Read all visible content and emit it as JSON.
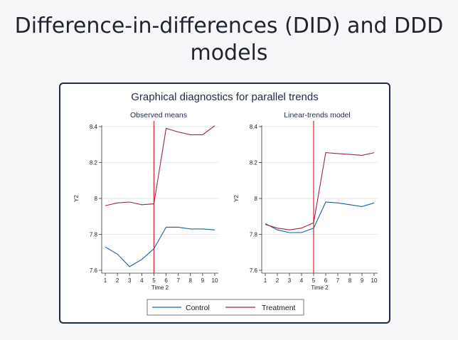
{
  "slide": {
    "title_line1": "Difference-in-differences (DID) and DDD",
    "title_line2": "models"
  },
  "chart_data": {
    "type": "line",
    "title": "Graphical diagnostics for parallel trends",
    "treatment_period": 5,
    "colors": {
      "Control": "#1a5fa6",
      "Treatment": "#a2243a",
      "treatment_line": "#d8203a"
    },
    "legend": {
      "position": "bottom",
      "entries": [
        "Control",
        "Treatment"
      ]
    },
    "panels": [
      {
        "subtitle": "Observed means",
        "xlabel": "Time 2",
        "ylabel": "Y2",
        "x": [
          1,
          2,
          3,
          4,
          5,
          6,
          7,
          8,
          9,
          10
        ],
        "xticks": [
          "1",
          "2",
          "3",
          "4",
          "5",
          "6",
          "7",
          "8",
          "9",
          "10"
        ],
        "ylim": [
          7.6,
          8.4
        ],
        "yticks": [
          "7.6",
          "7.8",
          "8",
          "8.2",
          "8.4"
        ],
        "series": [
          {
            "name": "Control",
            "values": [
              7.73,
              7.69,
              7.62,
              7.66,
              7.72,
              7.84,
              7.84,
              7.83,
              7.83,
              7.825
            ]
          },
          {
            "name": "Treatment",
            "values": [
              7.96,
              7.975,
              7.98,
              7.965,
              7.97,
              8.39,
              8.37,
              8.355,
              8.355,
              8.405
            ]
          }
        ]
      },
      {
        "subtitle": "Linear-trends model",
        "xlabel": "Time 2",
        "ylabel": "Y2",
        "x": [
          1,
          2,
          3,
          4,
          5,
          6,
          7,
          8,
          9,
          10
        ],
        "xticks": [
          "1",
          "2",
          "3",
          "4",
          "5",
          "6",
          "7",
          "8",
          "9",
          "10"
        ],
        "ylim": [
          7.6,
          8.4
        ],
        "yticks": [
          "7.6",
          "7.8",
          "8",
          "8.2",
          "8.4"
        ],
        "series": [
          {
            "name": "Control",
            "values": [
              7.86,
              7.825,
              7.81,
              7.81,
              7.835,
              7.98,
              7.975,
              7.965,
              7.955,
              7.975
            ]
          },
          {
            "name": "Treatment",
            "values": [
              7.855,
              7.835,
              7.825,
              7.835,
              7.865,
              8.255,
              8.25,
              8.245,
              8.24,
              8.255
            ]
          }
        ]
      }
    ]
  }
}
